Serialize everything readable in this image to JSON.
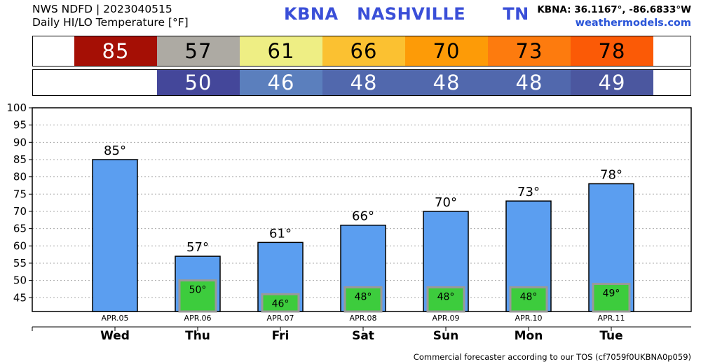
{
  "header": {
    "line1": "NWS NDFD | 2023040515",
    "line2": "Daily HI/LO Temperature [°F]",
    "station": "KBNA   NASHVILLE      TN",
    "coords": "KBNA: 36.1167°, -86.6833°W",
    "site": "weathermodels.com"
  },
  "hi_strip": [
    {
      "value": "85",
      "color": "#a50f05",
      "text_color": "#ffffff"
    },
    {
      "value": "57",
      "color": "#adaaa3",
      "text_color": "#000000"
    },
    {
      "value": "61",
      "color": "#eeee84",
      "text_color": "#000000"
    },
    {
      "value": "66",
      "color": "#fbc131",
      "text_color": "#000000"
    },
    {
      "value": "70",
      "color": "#fd9b07",
      "text_color": "#000000"
    },
    {
      "value": "73",
      "color": "#fd7b0e",
      "text_color": "#000000"
    },
    {
      "value": "78",
      "color": "#fb5a06",
      "text_color": "#000000"
    }
  ],
  "lo_strip": [
    {
      "value": "50",
      "color": "#44479a",
      "text_color": "#ffffff"
    },
    {
      "value": "46",
      "color": "#5b7fbd",
      "text_color": "#ffffff"
    },
    {
      "value": "48",
      "color": "#5168ad",
      "text_color": "#ffffff"
    },
    {
      "value": "48",
      "color": "#5168ad",
      "text_color": "#ffffff"
    },
    {
      "value": "48",
      "color": "#5168ad",
      "text_color": "#ffffff"
    },
    {
      "value": "49",
      "color": "#4b579f",
      "text_color": "#ffffff"
    }
  ],
  "chart_data": {
    "type": "bar",
    "categories": [
      "Wed",
      "Thu",
      "Fri",
      "Sat",
      "Sun",
      "Mon",
      "Tue"
    ],
    "dates": [
      "APR.05",
      "APR.06",
      "APR.07",
      "APR.08",
      "APR.09",
      "APR.10",
      "APR.11"
    ],
    "series": [
      {
        "name": "",
        "values": [
          85,
          57,
          61,
          66,
          70,
          73,
          78
        ],
        "color": "#5b9ef0",
        "labels": [
          "85°",
          "57°",
          "61°",
          "66°",
          "70°",
          "73°",
          "78°"
        ]
      },
      {
        "name": "",
        "values": [
          null,
          50,
          46,
          48,
          48,
          48,
          49
        ],
        "color": "#3dcc3d",
        "labels": [
          "",
          "50°",
          "46°",
          "48°",
          "48°",
          "48°",
          "49°"
        ]
      }
    ],
    "ylim": [
      41,
      100
    ],
    "yticks": [
      45,
      50,
      55,
      60,
      65,
      70,
      75,
      80,
      85,
      90,
      95,
      100
    ],
    "grid": true
  },
  "footer": "Commercial forecaster according to our TOS (cf7059f0UKBNA0p059)"
}
